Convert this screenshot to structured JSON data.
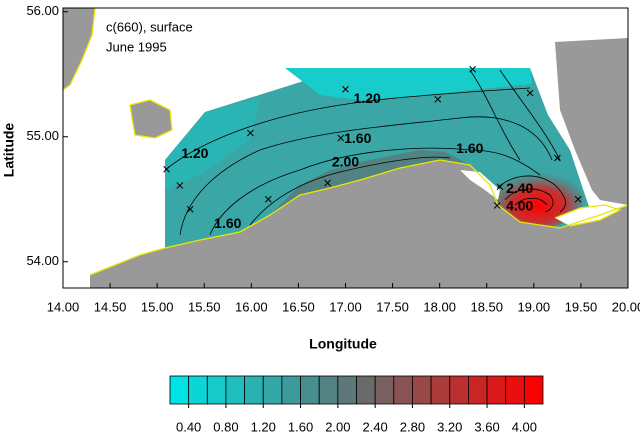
{
  "chart_data": {
    "type": "contour",
    "title": [
      "c(660), surface",
      "June 1995"
    ],
    "xlabel": "Longitude",
    "ylabel": "Latitude",
    "xlim": [
      14,
      20
    ],
    "ylim": [
      53.79,
      56.03
    ],
    "xticks": [
      {
        "value": 14,
        "label": "14.00"
      },
      {
        "value": 14.5,
        "label": "14.50"
      },
      {
        "value": 15,
        "label": "15.00"
      },
      {
        "value": 15.5,
        "label": "15.50"
      },
      {
        "value": 16,
        "label": "16.00"
      },
      {
        "value": 16.5,
        "label": "16.50"
      },
      {
        "value": 17,
        "label": "17.00"
      },
      {
        "value": 17.5,
        "label": "17.50"
      },
      {
        "value": 18,
        "label": "18.00"
      },
      {
        "value": 18.5,
        "label": "18.50"
      },
      {
        "value": 19,
        "label": "19.00"
      },
      {
        "value": 19.5,
        "label": "19.50"
      },
      {
        "value": 20,
        "label": "20.00"
      }
    ],
    "yticks": [
      {
        "value": 54,
        "label": "54.00"
      },
      {
        "value": 55,
        "label": "55.00"
      },
      {
        "value": 56,
        "label": "56.00"
      }
    ],
    "stations": {
      "x": [
        15.1,
        15.24,
        15.35,
        15.99,
        16.18,
        17.0,
        16.95,
        16.81,
        17.98,
        18.35,
        18.96,
        19.25,
        18.64,
        19.47,
        18.61
      ],
      "y": [
        54.74,
        54.61,
        54.42,
        55.03,
        54.5,
        55.38,
        54.99,
        54.63,
        55.3,
        55.54,
        55.35,
        54.83,
        54.6,
        54.5,
        54.45
      ]
    },
    "contour_labels": [
      {
        "text": "1.20",
        "x": 17.23,
        "y": 55.3
      },
      {
        "text": "1.20",
        "x": 15.4,
        "y": 54.86
      },
      {
        "text": "1.60",
        "x": 17.13,
        "y": 54.98
      },
      {
        "text": "2.00",
        "x": 17.0,
        "y": 54.79
      },
      {
        "text": "1.60",
        "x": 18.32,
        "y": 54.9
      },
      {
        "text": "1.60",
        "x": 15.75,
        "y": 54.3
      },
      {
        "text": "2.40",
        "x": 18.85,
        "y": 54.58
      },
      {
        "text": "4.00",
        "x": 18.85,
        "y": 54.44
      }
    ],
    "colorbar": {
      "lim": [
        0.2,
        4.2
      ],
      "colors": [
        "#00e3e3",
        "#0bd6d6",
        "#16caca",
        "#20bebe",
        "#2ab2b2",
        "#34a6a6",
        "#3e9a9a",
        "#488e8e",
        "#528282",
        "#5c7878",
        "#6a6a6a",
        "#7a5f5f",
        "#8a5353",
        "#9a4747",
        "#aa3c3c",
        "#ba3030",
        "#ca2525",
        "#da1a1a",
        "#ea0e0e",
        "#fa0000"
      ],
      "ticks": [
        {
          "value": 0.4,
          "label": "0.40"
        },
        {
          "value": 0.8,
          "label": "0.80"
        },
        {
          "value": 1.2,
          "label": "1.20"
        },
        {
          "value": 1.6,
          "label": "1.60"
        },
        {
          "value": 2.0,
          "label": "2.00"
        },
        {
          "value": 2.4,
          "label": "2.40"
        },
        {
          "value": 2.8,
          "label": "2.80"
        },
        {
          "value": 3.2,
          "label": "3.20"
        },
        {
          "value": 3.6,
          "label": "3.60"
        },
        {
          "value": 4.0,
          "label": "4.00"
        }
      ]
    }
  }
}
